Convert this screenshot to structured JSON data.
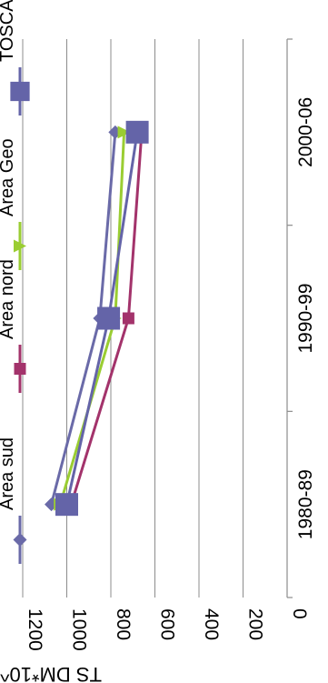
{
  "chart_data": {
    "type": "line",
    "title": "",
    "xlabel": "",
    "ylabel": "TS DM*10^5.",
    "categories": [
      "1980-89",
      "1990-99",
      "2000-06"
    ],
    "ylim": [
      0,
      1200
    ],
    "yticks": [
      "0",
      "200",
      "400",
      "600",
      "800",
      "1000",
      "1200"
    ],
    "grid": true,
    "legend_position": "top",
    "orientation": "rotated 90 degrees clockwise",
    "series": [
      {
        "name": "Area sud",
        "values": [
          1070,
          850,
          780
        ],
        "color": "#6a6aa8",
        "marker": "diamond"
      },
      {
        "name": "Area nord",
        "values": [
          980,
          720,
          660
        ],
        "color": "#a3336b",
        "marker": "square"
      },
      {
        "name": "Area Geo",
        "values": [
          1030,
          780,
          740
        ],
        "color": "#9acd32",
        "marker": "triangle"
      },
      {
        "name": "TOSCANA",
        "values": [
          1000,
          810,
          680
        ],
        "color": "#6464a8",
        "marker": "big-square"
      }
    ]
  }
}
